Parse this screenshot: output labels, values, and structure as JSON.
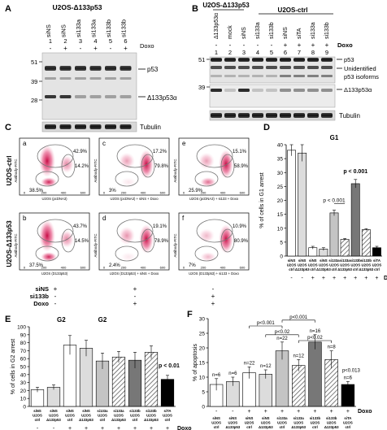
{
  "panels": {
    "A": {
      "letter": "A",
      "title": "U2OS-Δ133p53",
      "lanes": [
        "siNS",
        "siNS",
        "si133a",
        "si133a",
        "si133b",
        "si133b"
      ],
      "lane_numbers": [
        "1",
        "2",
        "3",
        "4",
        "5",
        "6"
      ],
      "doxo_label": "Doxo",
      "doxo": [
        "-",
        "+",
        "-",
        "+",
        "-",
        "+"
      ],
      "mw": [
        "51",
        "39",
        "28"
      ],
      "band_labels": [
        "p53",
        "Δ133p53α"
      ],
      "loading": "Tubulin"
    },
    "B": {
      "letter": "B",
      "header_left": "U2OS-Δ133p53",
      "header_right": "U2OS-ctrl",
      "lanes": [
        "Δ133p53α",
        "mock",
        "siNS",
        "si133a",
        "si133b",
        "siNS",
        "siTA",
        "si133a",
        "si133b"
      ],
      "lane_numbers": [
        "1",
        "2",
        "3",
        "4",
        "5",
        "6",
        "7",
        "8",
        "9"
      ],
      "doxo_label": "Doxo",
      "doxo": [
        "-",
        "-",
        "-",
        "-",
        "-",
        "+",
        "+",
        "+",
        "+"
      ],
      "mw": [
        "51",
        "39"
      ],
      "band_labels": [
        "p53",
        "Unidentified",
        "p53 isoforms",
        "Δ133p53α"
      ],
      "loading": "Tubulin"
    },
    "C": {
      "letter": "C",
      "row_labels": [
        "U2OS-ctrl",
        "U2OS-Δ133p53"
      ],
      "plots": [
        {
          "id": "a",
          "pcts": [
            "42.9%",
            "14.2%",
            "38.5%"
          ],
          "caption": "U2OS (pcDNA3)"
        },
        {
          "id": "c",
          "pcts": [
            "17.2%",
            "79.8%",
            "3%"
          ],
          "caption": "U2OS (pcDNA3) + siNS + Doxo"
        },
        {
          "id": "e",
          "pcts": [
            "15.1%",
            "58.9%",
            "25.9%"
          ],
          "caption": "U2OS (pcDNA3) + si133 + Doxo"
        },
        {
          "id": "b",
          "pcts": [
            "43.7%",
            "14.5%",
            "37.5%"
          ],
          "caption": "U2OS (D133p53)"
        },
        {
          "id": "d",
          "pcts": [
            "19.1%",
            "78.9%",
            "2.4%"
          ],
          "caption": "U2OS (D133p53) + siNS + Doxo"
        },
        {
          "id": "f",
          "pcts": [
            "10.9%",
            "80.9%",
            "7%"
          ],
          "caption": "U2OS (D133p53) + si133 + Doxo"
        }
      ],
      "axis_y": "Antibody-FITC",
      "x_ticks": [
        "0",
        "200",
        "400",
        "600"
      ],
      "cond_labels": [
        "siNS",
        "si133b",
        "Doxo"
      ],
      "cond_cols": [
        [
          "+",
          "-",
          "-"
        ],
        [
          "+",
          "-",
          "+"
        ],
        [
          "-",
          "+",
          "+"
        ]
      ]
    }
  },
  "chart_data": [
    {
      "panel": "D",
      "type": "bar",
      "title": "G1",
      "ylabel": "% of cells in G1 arrest",
      "ylim": [
        0,
        40
      ],
      "yticks": [
        0,
        5,
        10,
        15,
        20,
        25,
        30,
        35,
        40
      ],
      "categories": [
        "siNS U2OS ctrl",
        "siNS U2OS Δ133p53",
        "siNS U2OS ctrl",
        "siNS U2OS Δ133p53",
        "si133a U2OS ctrl",
        "si133a U2OS Δ133p53",
        "si133b U2OS ctrl",
        "si133b U2OS Δ133p53",
        "siTA U2OS ctrl"
      ],
      "doxo": [
        "-",
        "-",
        "+",
        "+",
        "+",
        "+",
        "+",
        "+",
        "+"
      ],
      "values": [
        38,
        37,
        3,
        2.5,
        15.5,
        6,
        26,
        9.5,
        3
      ],
      "errors": [
        2,
        3,
        0.5,
        0.5,
        1,
        0.3,
        1.5,
        0.3,
        0.5
      ],
      "annotations": [
        "p < 0.001",
        "p < 0.001"
      ],
      "xlabel_doxo": "Doxo"
    },
    {
      "panel": "E",
      "type": "bar",
      "title": "G2",
      "ylabel": "% of cells in G2 arrest",
      "ylim": [
        0,
        100
      ],
      "yticks": [
        0,
        10,
        20,
        30,
        40,
        50,
        60,
        70,
        80,
        90,
        100
      ],
      "categories": [
        "siNS U2OS ctrl",
        "siNS U2OS Δ133p53",
        "siNS U2OS ctrl",
        "siNS U2OS Δ133p53",
        "si133a U2OS ctrl",
        "si133a U2OS Δ133p53",
        "si133b U2OS ctrl",
        "si133b U2OS Δ133p53",
        "siTA U2OS ctrl"
      ],
      "doxo": [
        "-",
        "-",
        "+",
        "+",
        "+",
        "+",
        "+",
        "+",
        "+"
      ],
      "values": [
        21,
        24,
        77,
        73,
        57,
        62,
        58,
        68,
        34
      ],
      "errors": [
        3,
        3,
        12,
        10,
        10,
        7,
        10,
        8,
        5
      ],
      "annotations": [
        "p < 0.01"
      ],
      "xlabel_doxo": "Doxo"
    },
    {
      "panel": "F",
      "type": "bar",
      "title": "",
      "ylabel": "% of apoptosis",
      "ylim": [
        0,
        30
      ],
      "yticks": [
        0,
        5,
        10,
        15,
        20,
        25,
        30
      ],
      "categories": [
        "siNS U2OS ctrl",
        "siNS U2OS Δ133p53",
        "siNS U2OS ctrl",
        "siNS U2OS Δ133p53",
        "si133a U2OS ctrl",
        "si133a U2OS Δ133p53",
        "si133b U2OS ctrl",
        "si133b U2OS Δ133p53",
        "siTA U2OS ctrl"
      ],
      "doxo": [
        "-",
        "-",
        "+",
        "+",
        "+",
        "+",
        "+",
        "+",
        "+"
      ],
      "values": [
        7.5,
        8.5,
        11.5,
        11,
        19,
        14,
        22,
        16,
        7.5
      ],
      "errors": [
        2,
        1.5,
        2,
        1.5,
        3,
        2,
        2.5,
        3,
        1
      ],
      "n_labels": [
        "n=6",
        "n=6",
        "n=22",
        "n=12",
        "n=22",
        "n=12",
        "n=16",
        "n=8",
        "n=6"
      ],
      "annotations": [
        "p<0.001",
        "p<0.02",
        "p<0.001",
        "p<0.02",
        "p<0.013"
      ],
      "xlabel_doxo": "Doxo"
    }
  ],
  "colors": {
    "flow_dot": "#e0336b",
    "bar_fills": [
      "#ffffff",
      "#dcdcdc",
      "#ffffff",
      "#dcdcdc",
      "#c4c4c4",
      "hatch",
      "#777777",
      "hatch",
      "#000000"
    ]
  }
}
